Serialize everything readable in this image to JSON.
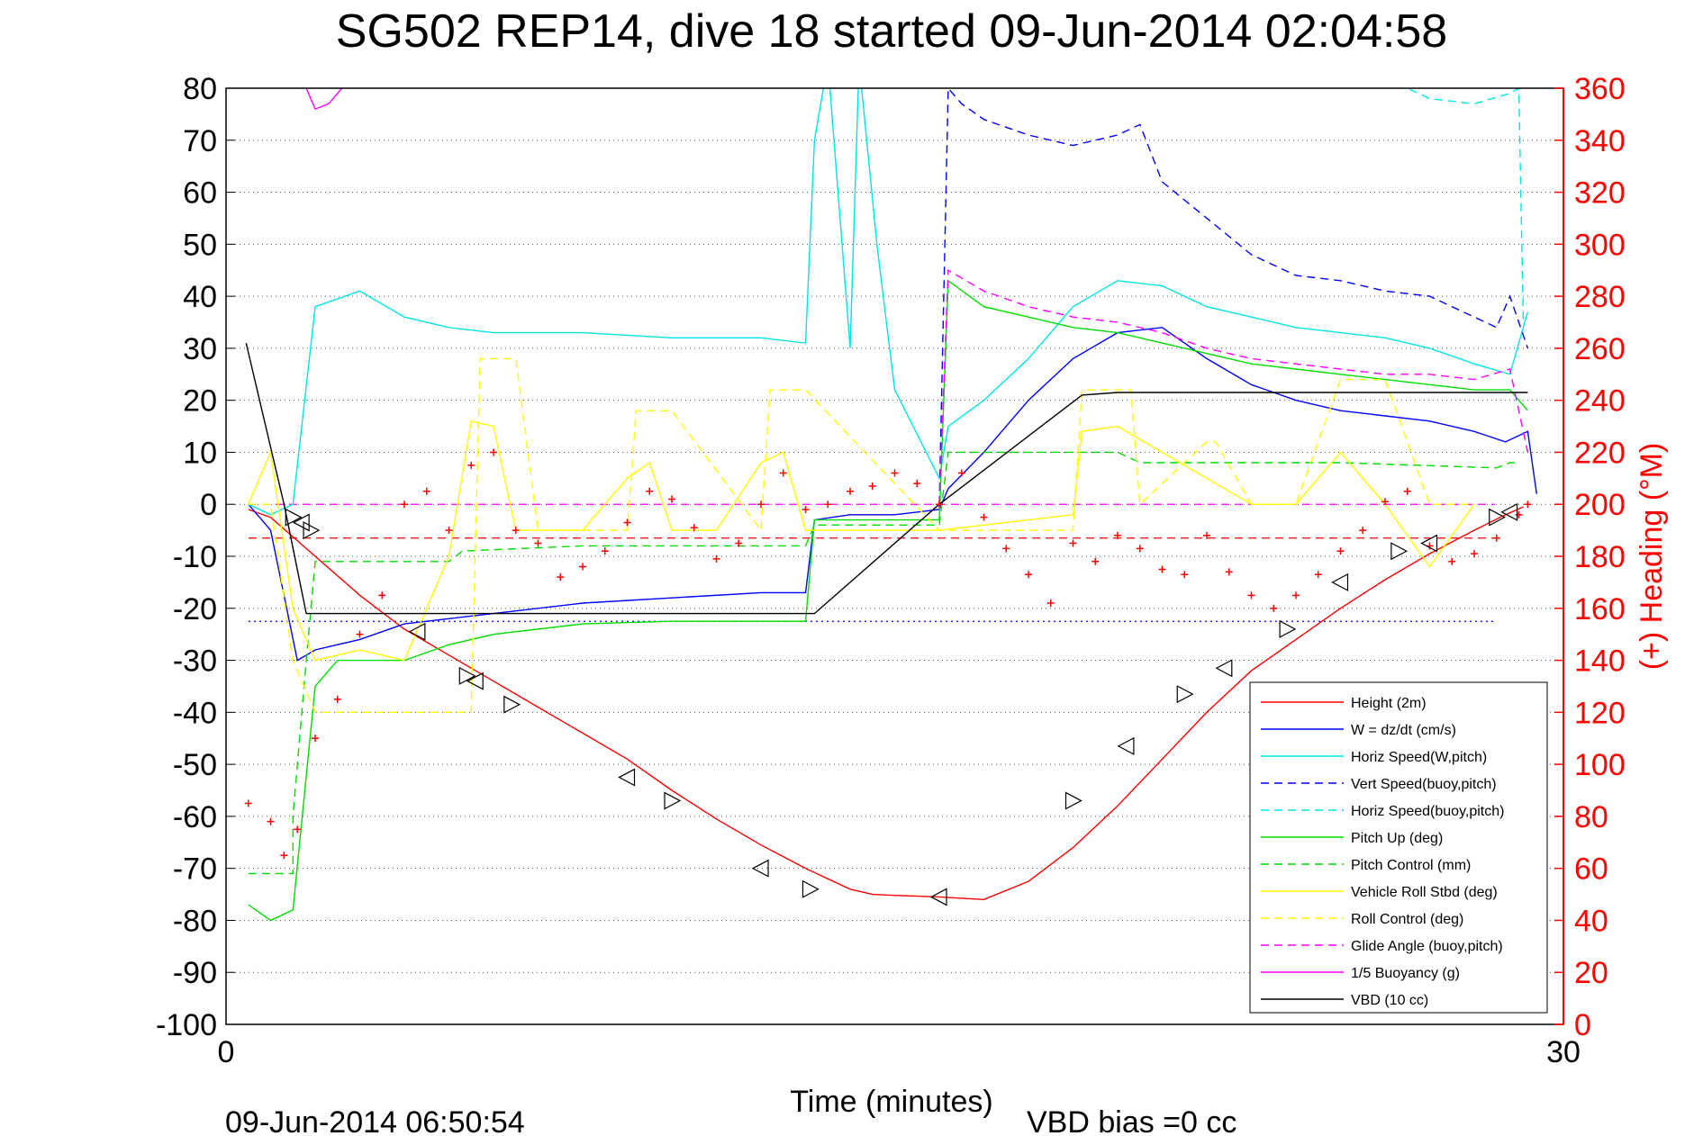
{
  "chart_data": {
    "type": "line",
    "title": "SG502 REP14, dive 18 started 09-Jun-2014 02:04:58",
    "xlabel": "Time (minutes)",
    "ylabel_right": "(+) Heading (°M)",
    "xlim": [
      0,
      30
    ],
    "ylim": [
      -100,
      80
    ],
    "ylim_right": [
      0,
      360
    ],
    "x_ticks": [
      "0",
      "30"
    ],
    "y_ticks": [
      "80",
      "70",
      "60",
      "50",
      "40",
      "30",
      "20",
      "10",
      "0",
      "-10",
      "-20",
      "-30",
      "-40",
      "-50",
      "-60",
      "-70",
      "-80",
      "-90",
      "-100"
    ],
    "y_right_ticks": [
      "360",
      "340",
      "320",
      "300",
      "280",
      "260",
      "240",
      "220",
      "200",
      "180",
      "160",
      "140",
      "120",
      "100",
      "80",
      "60",
      "40",
      "20",
      "0"
    ],
    "grid": "horizontal dotted",
    "legend_position": "bottom-right",
    "footer_time": "09-Jun-2014 06:50:54",
    "footer_bias": "VBD bias =0 cc",
    "reference_lines": [
      {
        "y": 0,
        "color": "#ff00ff",
        "dash": "dashed"
      },
      {
        "y": -6.5,
        "color": "#ff0000",
        "dash": "dashed"
      },
      {
        "y": -22.5,
        "color": "#0000ff",
        "dash": "dotted"
      }
    ],
    "series": [
      {
        "name": "Height (2m)",
        "color": "#ff0000",
        "dash": "solid",
        "x": [
          0.5,
          1,
          2,
          3,
          4,
          5,
          6,
          7,
          8,
          9,
          10,
          11,
          12,
          13,
          14,
          14.5,
          15,
          16,
          17,
          18,
          19,
          20,
          21,
          22,
          23,
          24,
          25,
          26,
          27,
          28,
          28.7,
          29.1
        ],
        "y": [
          -1,
          -2.5,
          -10,
          -17.5,
          -24,
          -29,
          -34,
          -39,
          -44,
          -49,
          -55,
          -60.5,
          -65.5,
          -70,
          -74,
          -75,
          -75.2,
          -75.5,
          -76,
          -72.5,
          -66,
          -58,
          -49,
          -40,
          -32,
          -26,
          -20,
          -14.5,
          -9.5,
          -5,
          -2,
          -0.5
        ]
      },
      {
        "name": "W = dz/dt (cm/s)",
        "color": "#0000ff",
        "dash": "solid",
        "x": [
          0.5,
          1,
          1.6,
          2,
          3,
          4,
          5,
          6,
          8,
          10,
          12,
          13,
          13.2,
          14,
          15,
          16,
          16.2,
          17,
          18,
          19,
          20,
          21,
          22,
          23,
          24,
          25,
          26,
          27,
          28,
          28.7,
          29.2,
          29.4
        ],
        "y": [
          0,
          -5,
          -30,
          -28,
          -26,
          -23,
          -22,
          -21,
          -19,
          -18,
          -17,
          -17,
          -3,
          -2,
          -2,
          -1,
          3,
          10,
          20,
          28,
          33,
          34,
          28,
          23,
          20,
          18,
          17,
          16,
          14,
          12,
          14,
          2
        ]
      },
      {
        "name": "Horiz Speed(W,pitch)",
        "color": "#00e5e5",
        "dash": "solid",
        "x": [
          0.5,
          1,
          1.5,
          2,
          3,
          4,
          5,
          6,
          8,
          10,
          12,
          13,
          13.2,
          13.5,
          14,
          14.2,
          14.6,
          15,
          16,
          16.2,
          17,
          18,
          19,
          20,
          21,
          22,
          23,
          24,
          25,
          26,
          27,
          28,
          28.8,
          29.2
        ],
        "y": [
          0,
          -2,
          0,
          38,
          41,
          36,
          34,
          33,
          33,
          32,
          32,
          31,
          70,
          85,
          30,
          85,
          50,
          22,
          5,
          15,
          20,
          28,
          38,
          43,
          42,
          38,
          36,
          34,
          33,
          32,
          30,
          27,
          25,
          37
        ]
      },
      {
        "name": "Vert Speed(buoy,pitch)",
        "color": "#0000ff",
        "dash": "dashed",
        "x": [
          16,
          16.2,
          16.5,
          17,
          18,
          19,
          20,
          20.5,
          21,
          22,
          23,
          24,
          25,
          26,
          27,
          28,
          28.5,
          28.8,
          29.2
        ],
        "y": [
          0,
          80,
          77,
          74,
          71,
          69,
          71,
          73,
          62,
          55,
          48,
          44,
          43,
          41,
          40,
          36,
          34,
          40,
          30
        ]
      },
      {
        "name": "Horiz Speed(buoy,pitch)",
        "color": "#00e5e5",
        "dash": "dashed",
        "x": [
          26,
          27,
          28,
          28.8,
          29.0,
          29.1
        ],
        "y": [
          82,
          78,
          77,
          79,
          80,
          35
        ]
      },
      {
        "name": "Pitch Up (deg)",
        "color": "#00dd00",
        "dash": "solid",
        "x": [
          0.5,
          1,
          1.5,
          2,
          2.5,
          3,
          4,
          5,
          6,
          8,
          10,
          12,
          13,
          13.2,
          14,
          15,
          16,
          16.2,
          17,
          18,
          19,
          20,
          21,
          22,
          23,
          24,
          25,
          26,
          27,
          28,
          28.8,
          29.2
        ],
        "y": [
          -77,
          -80,
          -78,
          -35,
          -30,
          -30,
          -30,
          -27,
          -25,
          -23,
          -22.5,
          -22.5,
          -22.5,
          -3,
          -3,
          -3,
          -3,
          43,
          38,
          36,
          34,
          33,
          31,
          29,
          27,
          26,
          25,
          24,
          23,
          22,
          22,
          18
        ]
      },
      {
        "name": "Pitch Control (mm)",
        "color": "#00dd00",
        "dash": "dashed",
        "x": [
          0.5,
          1.5,
          1.5,
          1.8,
          2,
          2.3,
          2.5,
          3,
          5,
          5.3,
          8,
          13,
          13.2,
          16,
          16.2,
          20,
          20.5,
          25,
          28.5,
          28.8,
          29
        ],
        "y": [
          -71,
          -71,
          -60,
          -30,
          -11,
          -11,
          -11,
          -11,
          -11,
          -9,
          -8,
          -8,
          -4,
          -4,
          10,
          10,
          8,
          8,
          7,
          8,
          8
        ]
      },
      {
        "name": "Vehicle Roll Stbd (deg)",
        "color": "#ffff00",
        "dash": "solid",
        "x": [
          0.5,
          1,
          1.5,
          2,
          3,
          4,
          5,
          5.5,
          6,
          6.5,
          7,
          8,
          9,
          9.5,
          10,
          11,
          12,
          12.5,
          13,
          16,
          19,
          19.2,
          20,
          21,
          22,
          23,
          24,
          25,
          26,
          27,
          28
        ],
        "y": [
          0,
          10,
          -20,
          -30,
          -28,
          -30,
          -10,
          16,
          15,
          -5,
          -5,
          -5,
          5,
          8,
          -5,
          -5,
          8,
          10,
          -5,
          -5,
          -2,
          14,
          15,
          10,
          5,
          0,
          0,
          10,
          0,
          -12,
          0
        ]
      },
      {
        "name": "Roll Control (deg)",
        "color": "#ffff00",
        "dash": "dashed",
        "x": [
          0.5,
          1,
          1.5,
          2,
          2.5,
          4,
          5.5,
          5.7,
          6.5,
          7,
          9,
          9.2,
          10,
          12,
          12.2,
          13,
          16,
          19,
          19.2,
          20.3,
          20.5,
          22,
          22.2,
          23,
          24,
          25,
          26,
          27,
          28
        ],
        "y": [
          0,
          0,
          -30,
          -40,
          -40,
          -40,
          -40,
          28,
          28,
          -5,
          -5,
          18,
          18,
          -5,
          22,
          22,
          -5,
          -5,
          22,
          22,
          0,
          12,
          12,
          0,
          0,
          24,
          24,
          0,
          0
        ]
      },
      {
        "name": "Glide Angle (buoy,pitch)",
        "color": "#ff00ff",
        "dash": "dashed",
        "x": [
          16,
          16.2,
          17,
          18,
          19,
          20,
          21,
          22,
          23,
          24,
          25,
          26,
          27,
          28,
          28.8,
          29.2
        ],
        "y": [
          0,
          45,
          41,
          38,
          36,
          35,
          33,
          30,
          28,
          27,
          26,
          25,
          25,
          24,
          26,
          10
        ]
      },
      {
        "name": "1/5 Buoyancy (g)",
        "color": "#ff00ff",
        "dash": "solid",
        "x": [
          1.8,
          2.0,
          2.3,
          2.6
        ],
        "y": [
          80,
          76,
          77,
          80
        ]
      },
      {
        "name": "VBD (10 cc)",
        "color": "#000000",
        "dash": "solid",
        "x": [
          0.45,
          1.3,
          1.8,
          5,
          10,
          13.2,
          16,
          19.2,
          20,
          25,
          29.2
        ],
        "y": [
          31,
          0,
          -21,
          -21,
          -21,
          -21,
          0,
          21,
          21.5,
          21.5,
          21.5
        ]
      },
      {
        "name": "Heading",
        "color": "#ff0000",
        "dash": "markers",
        "axis": "right",
        "x": [
          0.5,
          1,
          1.3,
          1.6,
          2,
          2.5,
          3,
          3.5,
          4,
          4.5,
          5,
          5.5,
          6,
          6.5,
          7,
          7.5,
          8,
          8.5,
          9,
          9.5,
          10,
          10.5,
          11,
          11.5,
          12,
          12.5,
          13,
          13.5,
          14,
          14.5,
          15,
          15.5,
          16,
          16.5,
          17,
          17.5,
          18,
          18.5,
          19,
          19.5,
          20,
          20.5,
          21,
          21.5,
          22,
          22.5,
          23,
          23.5,
          24,
          24.5,
          25,
          25.5,
          26,
          26.5,
          27,
          27.5,
          28,
          28.5,
          29,
          29.2
        ],
        "y": [
          85,
          78,
          65,
          75,
          110,
          125,
          150,
          165,
          200,
          205,
          190,
          215,
          220,
          190,
          185,
          172,
          176,
          182,
          193,
          205,
          202,
          191,
          179,
          185,
          200,
          212,
          198,
          200,
          205,
          207,
          212,
          208,
          200,
          212,
          195,
          183,
          173,
          162,
          185,
          178,
          188,
          183,
          175,
          173,
          188,
          174,
          165,
          160,
          165,
          173,
          182,
          190,
          201,
          205,
          184,
          178,
          181,
          187,
          196,
          200
        ]
      }
    ],
    "depth_markers": {
      "x": [
        1.5,
        1.7,
        1.9,
        4.3,
        5.4,
        5.6,
        6.4,
        9,
        10,
        12,
        13.1,
        16,
        19,
        20.2,
        21.5,
        22.4,
        23.8,
        25,
        26.3,
        27,
        28.5,
        28.8
      ],
      "y": [
        -2.5,
        -3.5,
        -5,
        -24.5,
        -33,
        -34,
        -38.5,
        -52.5,
        -57,
        -70,
        -74,
        -75.5,
        -57,
        -46.5,
        -36.5,
        -31.5,
        -24,
        -15,
        -9,
        -7.5,
        -2.5,
        -1.5
      ]
    }
  }
}
